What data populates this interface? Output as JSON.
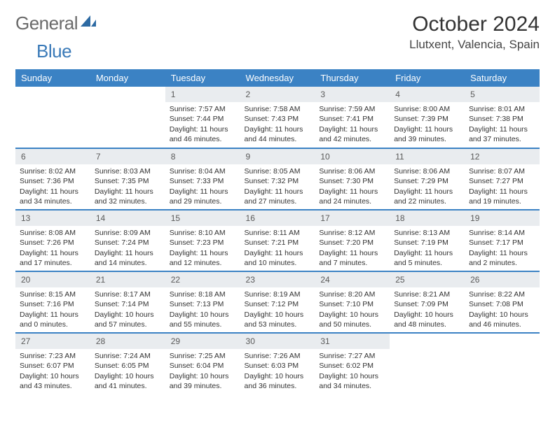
{
  "logo": {
    "text1": "General",
    "text2": "Blue"
  },
  "title": "October 2024",
  "location": "Llutxent, Valencia, Spain",
  "colors": {
    "header_bg": "#3b82c4",
    "header_text": "#ffffff",
    "daybar_bg": "#e9ecef",
    "logo_gray": "#6a6a6a",
    "logo_blue": "#3a7ab8"
  },
  "day_names": [
    "Sunday",
    "Monday",
    "Tuesday",
    "Wednesday",
    "Thursday",
    "Friday",
    "Saturday"
  ],
  "weeks": [
    [
      {
        "n": "",
        "lines": []
      },
      {
        "n": "",
        "lines": []
      },
      {
        "n": "1",
        "lines": [
          "Sunrise: 7:57 AM",
          "Sunset: 7:44 PM",
          "Daylight: 11 hours and 46 minutes."
        ]
      },
      {
        "n": "2",
        "lines": [
          "Sunrise: 7:58 AM",
          "Sunset: 7:43 PM",
          "Daylight: 11 hours and 44 minutes."
        ]
      },
      {
        "n": "3",
        "lines": [
          "Sunrise: 7:59 AM",
          "Sunset: 7:41 PM",
          "Daylight: 11 hours and 42 minutes."
        ]
      },
      {
        "n": "4",
        "lines": [
          "Sunrise: 8:00 AM",
          "Sunset: 7:39 PM",
          "Daylight: 11 hours and 39 minutes."
        ]
      },
      {
        "n": "5",
        "lines": [
          "Sunrise: 8:01 AM",
          "Sunset: 7:38 PM",
          "Daylight: 11 hours and 37 minutes."
        ]
      }
    ],
    [
      {
        "n": "6",
        "lines": [
          "Sunrise: 8:02 AM",
          "Sunset: 7:36 PM",
          "Daylight: 11 hours and 34 minutes."
        ]
      },
      {
        "n": "7",
        "lines": [
          "Sunrise: 8:03 AM",
          "Sunset: 7:35 PM",
          "Daylight: 11 hours and 32 minutes."
        ]
      },
      {
        "n": "8",
        "lines": [
          "Sunrise: 8:04 AM",
          "Sunset: 7:33 PM",
          "Daylight: 11 hours and 29 minutes."
        ]
      },
      {
        "n": "9",
        "lines": [
          "Sunrise: 8:05 AM",
          "Sunset: 7:32 PM",
          "Daylight: 11 hours and 27 minutes."
        ]
      },
      {
        "n": "10",
        "lines": [
          "Sunrise: 8:06 AM",
          "Sunset: 7:30 PM",
          "Daylight: 11 hours and 24 minutes."
        ]
      },
      {
        "n": "11",
        "lines": [
          "Sunrise: 8:06 AM",
          "Sunset: 7:29 PM",
          "Daylight: 11 hours and 22 minutes."
        ]
      },
      {
        "n": "12",
        "lines": [
          "Sunrise: 8:07 AM",
          "Sunset: 7:27 PM",
          "Daylight: 11 hours and 19 minutes."
        ]
      }
    ],
    [
      {
        "n": "13",
        "lines": [
          "Sunrise: 8:08 AM",
          "Sunset: 7:26 PM",
          "Daylight: 11 hours and 17 minutes."
        ]
      },
      {
        "n": "14",
        "lines": [
          "Sunrise: 8:09 AM",
          "Sunset: 7:24 PM",
          "Daylight: 11 hours and 14 minutes."
        ]
      },
      {
        "n": "15",
        "lines": [
          "Sunrise: 8:10 AM",
          "Sunset: 7:23 PM",
          "Daylight: 11 hours and 12 minutes."
        ]
      },
      {
        "n": "16",
        "lines": [
          "Sunrise: 8:11 AM",
          "Sunset: 7:21 PM",
          "Daylight: 11 hours and 10 minutes."
        ]
      },
      {
        "n": "17",
        "lines": [
          "Sunrise: 8:12 AM",
          "Sunset: 7:20 PM",
          "Daylight: 11 hours and 7 minutes."
        ]
      },
      {
        "n": "18",
        "lines": [
          "Sunrise: 8:13 AM",
          "Sunset: 7:19 PM",
          "Daylight: 11 hours and 5 minutes."
        ]
      },
      {
        "n": "19",
        "lines": [
          "Sunrise: 8:14 AM",
          "Sunset: 7:17 PM",
          "Daylight: 11 hours and 2 minutes."
        ]
      }
    ],
    [
      {
        "n": "20",
        "lines": [
          "Sunrise: 8:15 AM",
          "Sunset: 7:16 PM",
          "Daylight: 11 hours and 0 minutes."
        ]
      },
      {
        "n": "21",
        "lines": [
          "Sunrise: 8:17 AM",
          "Sunset: 7:14 PM",
          "Daylight: 10 hours and 57 minutes."
        ]
      },
      {
        "n": "22",
        "lines": [
          "Sunrise: 8:18 AM",
          "Sunset: 7:13 PM",
          "Daylight: 10 hours and 55 minutes."
        ]
      },
      {
        "n": "23",
        "lines": [
          "Sunrise: 8:19 AM",
          "Sunset: 7:12 PM",
          "Daylight: 10 hours and 53 minutes."
        ]
      },
      {
        "n": "24",
        "lines": [
          "Sunrise: 8:20 AM",
          "Sunset: 7:10 PM",
          "Daylight: 10 hours and 50 minutes."
        ]
      },
      {
        "n": "25",
        "lines": [
          "Sunrise: 8:21 AM",
          "Sunset: 7:09 PM",
          "Daylight: 10 hours and 48 minutes."
        ]
      },
      {
        "n": "26",
        "lines": [
          "Sunrise: 8:22 AM",
          "Sunset: 7:08 PM",
          "Daylight: 10 hours and 46 minutes."
        ]
      }
    ],
    [
      {
        "n": "27",
        "lines": [
          "Sunrise: 7:23 AM",
          "Sunset: 6:07 PM",
          "Daylight: 10 hours and 43 minutes."
        ]
      },
      {
        "n": "28",
        "lines": [
          "Sunrise: 7:24 AM",
          "Sunset: 6:05 PM",
          "Daylight: 10 hours and 41 minutes."
        ]
      },
      {
        "n": "29",
        "lines": [
          "Sunrise: 7:25 AM",
          "Sunset: 6:04 PM",
          "Daylight: 10 hours and 39 minutes."
        ]
      },
      {
        "n": "30",
        "lines": [
          "Sunrise: 7:26 AM",
          "Sunset: 6:03 PM",
          "Daylight: 10 hours and 36 minutes."
        ]
      },
      {
        "n": "31",
        "lines": [
          "Sunrise: 7:27 AM",
          "Sunset: 6:02 PM",
          "Daylight: 10 hours and 34 minutes."
        ]
      },
      {
        "n": "",
        "lines": []
      },
      {
        "n": "",
        "lines": []
      }
    ]
  ]
}
